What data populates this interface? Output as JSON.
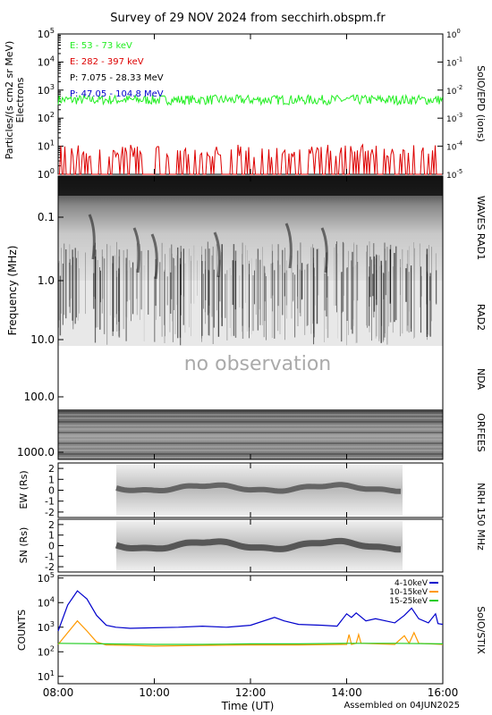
{
  "title": "Survey of 29 NOV 2024 from secchirh.obspm.fr",
  "footer": {
    "xlabel": "Time (UT)",
    "assembled": "Assembled on 04JUN2025",
    "x_ticks": [
      "08:00",
      "10:00",
      "12:00",
      "14:00",
      "16:00"
    ]
  },
  "colors": {
    "electrons_low": "#22ee22",
    "electrons_high": "#dd0000",
    "protons_low": "#000000",
    "protons_high": "#0000cc",
    "stix_4_10": "#0000cc",
    "stix_10_15": "#ff9900",
    "stix_15_25": "#22cc22"
  },
  "chart_data": [
    {
      "type": "line",
      "panel": "SolO/EPD",
      "ylabel": "Particles/(s cm2 sr MeV)",
      "ylabel2": "Electrons",
      "right_label": "SolO/EPD (ions)",
      "yscale": "log",
      "ylim": [
        1,
        100000
      ],
      "y_ticks": [
        "10^0",
        "10^1",
        "10^2",
        "10^3",
        "10^4",
        "10^5"
      ],
      "right_ticks": [
        "10^-5",
        "10^-4",
        "10^-3",
        "10^-2",
        "10^-1",
        "10^0"
      ],
      "xlim": [
        "08:00",
        "16:00"
      ],
      "legend": [
        {
          "name": "E: 53 - 73 keV",
          "color": "#22ee22"
        },
        {
          "name": "E: 282 - 397 keV",
          "color": "#dd0000"
        },
        {
          "name": "P: 7.075 - 28.33 MeV",
          "color": "#000000"
        },
        {
          "name": "P: 47.05 - 104.8 MeV",
          "color": "#0000cc"
        }
      ],
      "series": [
        {
          "name": "E: 53 - 73 keV",
          "typical": 450,
          "min": 300,
          "max": 800
        },
        {
          "name": "E: 282 - 397 keV",
          "typical": 4,
          "min": 1,
          "max": 12
        }
      ]
    },
    {
      "type": "heatmap",
      "panel": "Radio spectrogram",
      "ylabel": "Frequency (MHz)",
      "yscale": "log",
      "y_ticks": [
        "0.1",
        "1.0",
        "10.0",
        "100.0",
        "1000.0"
      ],
      "right_labels": [
        "WAVES RAD1",
        "RAD2",
        "NDA",
        "ORFEES"
      ],
      "annotation": "no observation",
      "xlim": [
        "08:00",
        "16:00"
      ]
    },
    {
      "type": "heatmap",
      "panel": "NRH EW",
      "ylabel": "EW (Rs)",
      "y_ticks": [
        "2",
        "1",
        "0",
        "-1",
        "-2"
      ],
      "ylim": [
        -2.5,
        2.5
      ],
      "observed": [
        "09:10",
        "15:05"
      ]
    },
    {
      "type": "heatmap",
      "panel": "NRH SN",
      "ylabel": "SN (Rs)",
      "right_label": "NRH 150 MHz",
      "y_ticks": [
        "2",
        "1",
        "0",
        "-1",
        "-2"
      ],
      "ylim": [
        -2.5,
        2.5
      ],
      "observed": [
        "09:10",
        "15:05"
      ]
    },
    {
      "type": "line",
      "panel": "SolO/STIX",
      "ylabel": "COUNTS",
      "right_label": "SolO/STIX",
      "yscale": "log",
      "ylim": [
        1,
        100000
      ],
      "y_ticks": [
        "10^1",
        "10^2",
        "10^3",
        "10^4",
        "10^5"
      ],
      "legend": [
        {
          "name": "4-10keV",
          "color": "#0000cc"
        },
        {
          "name": "10-15keV",
          "color": "#ff9900"
        },
        {
          "name": "15-25keV",
          "color": "#22cc22"
        }
      ],
      "series": [
        {
          "name": "4-10keV",
          "x": [
            8.0,
            8.2,
            8.4,
            8.6,
            8.8,
            9.0,
            9.2,
            9.5,
            10.0,
            10.5,
            11.0,
            11.5,
            12.0,
            12.5,
            12.7,
            13.0,
            13.5,
            13.8,
            14.0,
            14.1,
            14.2,
            14.4,
            14.6,
            15.0,
            15.2,
            15.35,
            15.5,
            15.7,
            15.85,
            15.9,
            16.0
          ],
          "y": [
            700,
            8000,
            30000,
            14000,
            3000,
            1200,
            1000,
            900,
            950,
            1000,
            1100,
            1000,
            1200,
            2500,
            1800,
            1300,
            1200,
            1100,
            3500,
            2500,
            3800,
            1800,
            2200,
            1500,
            3000,
            6000,
            2200,
            1500,
            3500,
            1400,
            1300
          ]
        },
        {
          "name": "10-15keV",
          "x": [
            8.0,
            8.2,
            8.4,
            8.6,
            8.8,
            9.0,
            9.5,
            10.0,
            11.0,
            12.0,
            13.0,
            14.0,
            14.05,
            14.1,
            14.2,
            14.25,
            14.3,
            15.0,
            15.2,
            15.3,
            15.4,
            15.5,
            16.0
          ],
          "y": [
            200,
            600,
            1800,
            700,
            250,
            190,
            180,
            170,
            180,
            190,
            190,
            200,
            500,
            200,
            220,
            500,
            220,
            200,
            450,
            220,
            600,
            220,
            200
          ]
        },
        {
          "name": "15-25keV",
          "x": [
            8.0,
            9.0,
            10.0,
            11.0,
            12.0,
            13.0,
            14.0,
            15.0,
            16.0
          ],
          "y": [
            220,
            210,
            200,
            200,
            210,
            210,
            220,
            220,
            210
          ]
        }
      ]
    }
  ]
}
